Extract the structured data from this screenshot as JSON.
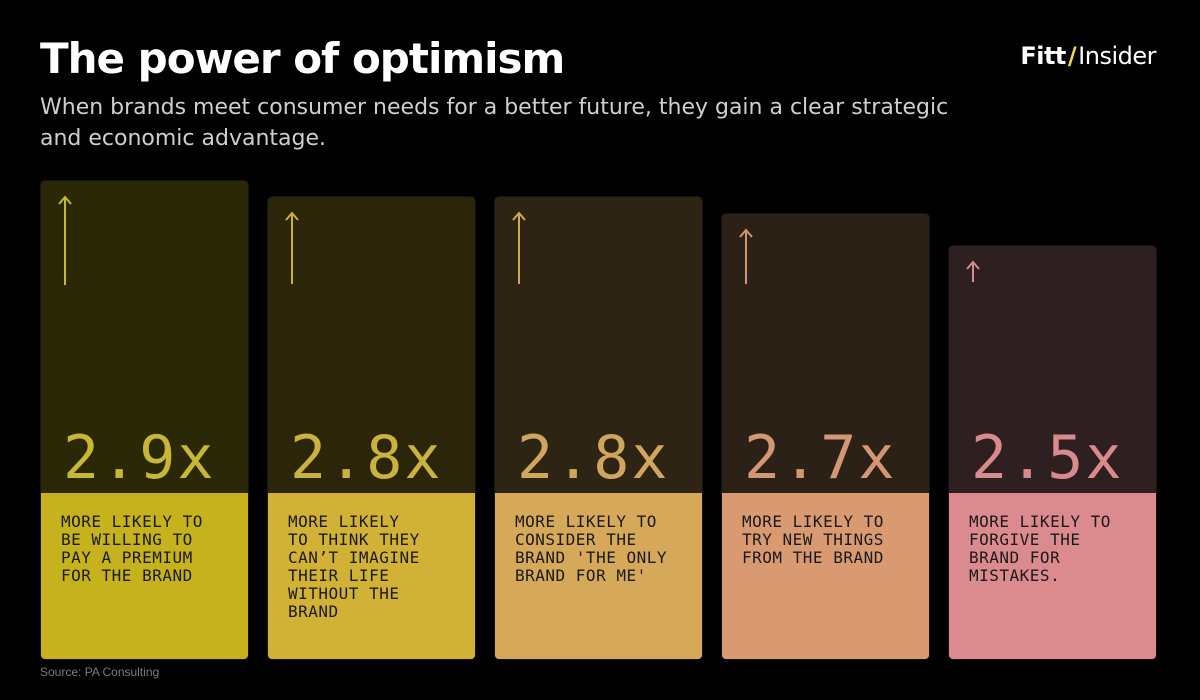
{
  "header": {
    "title": "The power of optimism",
    "subtitle": "When brands meet consumer needs for a better future, they gain a clear strategic and economic advantage."
  },
  "logo": {
    "part1": "Fitt",
    "slash": "/",
    "part2": "Insider"
  },
  "footer": {
    "source": "Source: PA Consulting"
  },
  "chart_data": {
    "type": "bar",
    "title": "The power of optimism",
    "categories": [
      "MORE LIKELY TO BE WILLING TO PAY A PREMIUM FOR THE BRAND",
      "MORE LIKELY TO THINK THEY CAN'T IMAGINE THEIR LIFE WITHOUT THE BRAND",
      "MORE LIKELY TO CONSIDER THE BRAND 'THE ONLY BRAND FOR ME'",
      "MORE LIKELY TO TRY NEW THINGS FROM THE BRAND",
      "MORE LIKELY TO FORGIVE THE BRAND FOR MISTAKES."
    ],
    "values": [
      2.9,
      2.8,
      2.8,
      2.7,
      2.5
    ],
    "value_labels": [
      "2.9x",
      "2.8x",
      "2.8x",
      "2.7x",
      "2.5x"
    ],
    "descriptions": [
      "MORE LIKELY TO\nBE WILLING TO\nPAY A PREMIUM\nFOR THE BRAND",
      "MORE LIKELY\nTO THINK THEY\nCAN’T IMAGINE\nTHEIR LIFE\nWITHOUT THE\nBRAND",
      "MORE LIKELY TO\nCONSIDER THE\nBRAND 'THE ONLY\nBRAND FOR ME'",
      "MORE LIKELY TO\nTRY NEW THINGS\nFROM THE BRAND",
      "MORE LIKELY TO\nFORGIVE THE\nBRAND FOR\nMISTAKES."
    ],
    "colors": {
      "top": [
        "#2b2808",
        "#2b2509",
        "#2d2413",
        "#2c2117",
        "#2e1f20"
      ],
      "bottom": [
        "#c5b21d",
        "#d2b236",
        "#d6a85a",
        "#d99a72",
        "#db8a8e"
      ],
      "accent": [
        "#c8b635",
        "#cbb13e",
        "#d0a65c",
        "#d39773",
        "#d98a8c"
      ]
    }
  }
}
